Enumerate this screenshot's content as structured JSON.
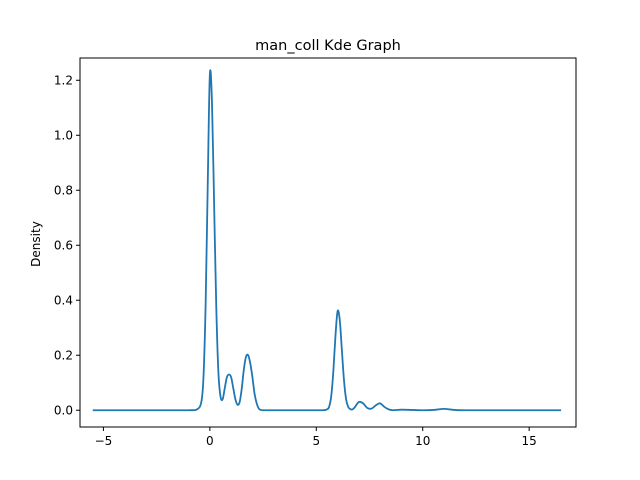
{
  "chart_data": {
    "type": "line",
    "title": "man_coll Kde Graph",
    "xlabel": "",
    "ylabel": "Density",
    "xlim": [
      -6.1,
      17.2
    ],
    "ylim": [
      -0.061,
      1.281
    ],
    "x_ticks": [
      -5,
      0,
      5,
      10,
      15
    ],
    "y_ticks": [
      0.0,
      0.2,
      0.4,
      0.6,
      0.8,
      1.0,
      1.2
    ],
    "x_tick_labels": [
      "−5",
      "0",
      "5",
      "10",
      "15"
    ],
    "y_tick_labels": [
      "0.0",
      "0.2",
      "0.4",
      "0.6",
      "0.8",
      "1.0",
      "1.2"
    ],
    "grid": false,
    "series": [
      {
        "color": "#1f77b4",
        "x": [
          -5.5,
          -3,
          -1,
          -0.6,
          -0.4,
          -0.3,
          -0.2,
          -0.1,
          0,
          0.1,
          0.2,
          0.3,
          0.4,
          0.5,
          0.6,
          0.7,
          0.8,
          0.9,
          1.0,
          1.1,
          1.2,
          1.3,
          1.4,
          1.5,
          1.6,
          1.7,
          1.8,
          1.9,
          2.0,
          2.1,
          2.2,
          2.3,
          2.4,
          2.5,
          2.6,
          2.8,
          3.0,
          4.0,
          5.0,
          5.3,
          5.5,
          5.6,
          5.7,
          5.8,
          5.9,
          6.0,
          6.1,
          6.2,
          6.3,
          6.4,
          6.5,
          6.6,
          6.7,
          6.8,
          7.0,
          7.2,
          7.4,
          7.6,
          7.8,
          8.0,
          8.2,
          8.4,
          8.6,
          9.0,
          9.5,
          10.0,
          10.5,
          11.0,
          11.5,
          12.0,
          14.0,
          16.5
        ],
        "y": [
          0.0,
          0.0,
          0.0,
          0.003,
          0.03,
          0.12,
          0.38,
          0.82,
          1.22,
          1.12,
          0.75,
          0.38,
          0.14,
          0.05,
          0.04,
          0.08,
          0.12,
          0.13,
          0.12,
          0.08,
          0.04,
          0.02,
          0.03,
          0.08,
          0.15,
          0.195,
          0.2,
          0.17,
          0.12,
          0.06,
          0.025,
          0.006,
          0.001,
          0.0,
          0.0,
          0.0,
          0.0,
          0.0,
          0.0,
          0.0,
          0.003,
          0.012,
          0.05,
          0.14,
          0.27,
          0.36,
          0.33,
          0.22,
          0.11,
          0.04,
          0.012,
          0.004,
          0.003,
          0.01,
          0.03,
          0.025,
          0.008,
          0.006,
          0.018,
          0.025,
          0.012,
          0.003,
          0.0,
          0.002,
          0.001,
          0.0,
          0.001,
          0.005,
          0.001,
          0.0,
          0.0,
          0.0
        ]
      }
    ]
  }
}
